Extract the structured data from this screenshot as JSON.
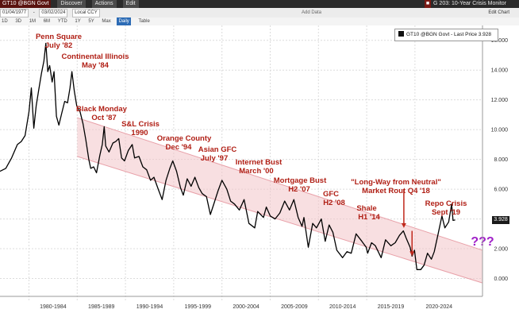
{
  "toolbar": {
    "ticker": "GT10 @BGN Govt",
    "start_date": "01/04/1977",
    "end_date": "03/02/2024",
    "discover": "Discover",
    "actions": "Actions",
    "edit": "Edit",
    "title": "G 203: 10-Year Crisis Monitor",
    "currency": "Local CCY",
    "add_data": "Add Data",
    "edit_chart": "Edit Chart"
  },
  "range_buttons": [
    "1D",
    "3D",
    "1M",
    "6M",
    "YTD",
    "1Y",
    "5Y",
    "Max",
    "Daily",
    "Table"
  ],
  "legend": {
    "label": "GT10 @BGN Govt - Last Price 3.928"
  },
  "last_price_label": "3.928",
  "chart_data": {
    "type": "line",
    "series": [
      {
        "name": "GT10 @BGN Govt - Last Price",
        "color": "#000000",
        "points": [
          [
            1977.0,
            7.2
          ],
          [
            1977.6,
            7.4
          ],
          [
            1978.2,
            8.1
          ],
          [
            1978.8,
            9.0
          ],
          [
            1979.2,
            9.2
          ],
          [
            1979.6,
            9.6
          ],
          [
            1980.0,
            11.2
          ],
          [
            1980.25,
            12.8
          ],
          [
            1980.5,
            10.1
          ],
          [
            1980.75,
            11.6
          ],
          [
            1981.0,
            12.6
          ],
          [
            1981.3,
            13.8
          ],
          [
            1981.55,
            14.6
          ],
          [
            1981.75,
            15.8
          ],
          [
            1981.95,
            13.9
          ],
          [
            1982.15,
            14.3
          ],
          [
            1982.4,
            13.2
          ],
          [
            1982.6,
            13.9
          ],
          [
            1982.85,
            10.9
          ],
          [
            1983.1,
            10.3
          ],
          [
            1983.4,
            11.1
          ],
          [
            1983.7,
            11.9
          ],
          [
            1984.0,
            11.8
          ],
          [
            1984.25,
            12.8
          ],
          [
            1984.45,
            13.9
          ],
          [
            1984.7,
            12.6
          ],
          [
            1984.95,
            11.6
          ],
          [
            1985.3,
            11.2
          ],
          [
            1985.6,
            10.4
          ],
          [
            1985.9,
            9.3
          ],
          [
            1986.2,
            8.0
          ],
          [
            1986.4,
            7.4
          ],
          [
            1986.7,
            7.5
          ],
          [
            1987.0,
            7.1
          ],
          [
            1987.35,
            8.3
          ],
          [
            1987.6,
            9.0
          ],
          [
            1987.8,
            10.2
          ],
          [
            1987.95,
            8.9
          ],
          [
            1988.3,
            8.5
          ],
          [
            1988.7,
            9.1
          ],
          [
            1989.0,
            9.2
          ],
          [
            1989.3,
            9.4
          ],
          [
            1989.6,
            8.1
          ],
          [
            1989.9,
            7.9
          ],
          [
            1990.3,
            8.6
          ],
          [
            1990.7,
            9.0
          ],
          [
            1990.95,
            8.1
          ],
          [
            1991.4,
            8.2
          ],
          [
            1991.8,
            7.5
          ],
          [
            1992.2,
            7.3
          ],
          [
            1992.6,
            6.6
          ],
          [
            1992.95,
            6.8
          ],
          [
            1993.4,
            6.0
          ],
          [
            1993.8,
            5.3
          ],
          [
            1994.2,
            6.6
          ],
          [
            1994.6,
            7.4
          ],
          [
            1994.9,
            7.9
          ],
          [
            1995.3,
            7.2
          ],
          [
            1995.7,
            6.1
          ],
          [
            1996.0,
            5.6
          ],
          [
            1996.4,
            6.7
          ],
          [
            1996.8,
            6.2
          ],
          [
            1997.2,
            6.8
          ],
          [
            1997.6,
            6.1
          ],
          [
            1997.95,
            5.7
          ],
          [
            1998.4,
            5.5
          ],
          [
            1998.8,
            4.3
          ],
          [
            1999.2,
            5.1
          ],
          [
            1999.6,
            5.9
          ],
          [
            2000.0,
            6.6
          ],
          [
            2000.5,
            6.0
          ],
          [
            2000.9,
            5.2
          ],
          [
            2001.3,
            5.0
          ],
          [
            2001.8,
            4.6
          ],
          [
            2002.3,
            5.3
          ],
          [
            2002.8,
            3.7
          ],
          [
            2003.4,
            3.4
          ],
          [
            2003.7,
            4.5
          ],
          [
            2004.3,
            4.1
          ],
          [
            2004.6,
            4.8
          ],
          [
            2005.0,
            4.2
          ],
          [
            2005.5,
            4.0
          ],
          [
            2006.0,
            4.4
          ],
          [
            2006.5,
            5.2
          ],
          [
            2007.0,
            4.6
          ],
          [
            2007.45,
            5.3
          ],
          [
            2007.9,
            4.1
          ],
          [
            2008.3,
            3.5
          ],
          [
            2008.5,
            4.1
          ],
          [
            2008.95,
            2.1
          ],
          [
            2009.4,
            3.7
          ],
          [
            2009.8,
            3.4
          ],
          [
            2010.3,
            4.0
          ],
          [
            2010.7,
            2.5
          ],
          [
            2011.1,
            3.6
          ],
          [
            2011.5,
            3.1
          ],
          [
            2011.9,
            1.9
          ],
          [
            2012.5,
            1.4
          ],
          [
            2012.95,
            1.8
          ],
          [
            2013.4,
            1.7
          ],
          [
            2013.9,
            3.0
          ],
          [
            2014.5,
            2.5
          ],
          [
            2014.95,
            2.1
          ],
          [
            2015.1,
            1.7
          ],
          [
            2015.5,
            2.4
          ],
          [
            2015.9,
            2.2
          ],
          [
            2016.5,
            1.4
          ],
          [
            2016.95,
            2.6
          ],
          [
            2017.5,
            2.2
          ],
          [
            2017.95,
            2.4
          ],
          [
            2018.4,
            2.9
          ],
          [
            2018.8,
            3.2
          ],
          [
            2019.1,
            2.7
          ],
          [
            2019.5,
            2.1
          ],
          [
            2019.7,
            1.5
          ],
          [
            2019.95,
            1.9
          ],
          [
            2020.2,
            0.6
          ],
          [
            2020.6,
            0.6
          ],
          [
            2020.95,
            0.9
          ],
          [
            2021.3,
            1.7
          ],
          [
            2021.7,
            1.3
          ],
          [
            2022.0,
            1.8
          ],
          [
            2022.4,
            3.0
          ],
          [
            2022.8,
            4.2
          ],
          [
            2023.1,
            3.4
          ],
          [
            2023.5,
            3.8
          ],
          [
            2023.8,
            5.0
          ],
          [
            2023.95,
            3.9
          ],
          [
            2024.17,
            3.928
          ]
        ]
      }
    ],
    "channel": {
      "color": "#f2c4c8",
      "upper": [
        [
          1985.0,
          10.8
        ],
        [
          2027.0,
          1.9
        ]
      ],
      "lower": [
        [
          1985.0,
          8.2
        ],
        [
          2027.0,
          -0.3
        ]
      ]
    },
    "annotations": [
      {
        "label": "Penn Square",
        "label2": "July '82"
      },
      {
        "label": "Continental Illinois",
        "label2": "May '84"
      },
      {
        "label": "Black Monday",
        "label2": "Oct '87"
      },
      {
        "label": "S&L Crisis",
        "label2": "1990"
      },
      {
        "label": "Orange County",
        "label2": "Dec '94"
      },
      {
        "label": "Asian GFC",
        "label2": "July '97"
      },
      {
        "label": "Internet Bust",
        "label2": "March '00"
      },
      {
        "label": "Mortgage Bust",
        "label2": "H2 '07"
      },
      {
        "label": "GFC",
        "label2": "H2 '08"
      },
      {
        "label": "Shale",
        "label2": "H1 '14"
      },
      {
        "label": "\"Long-Way from Neutral\"",
        "label2": "Market Rout Q4 '18"
      },
      {
        "label": "Repo Crisis",
        "label2": "Sept '19"
      }
    ],
    "question_label": "???",
    "x_tick_labels": [
      "1980-1984",
      "1985-1989",
      "1990-1994",
      "1995-1999",
      "2000-2004",
      "2005-2009",
      "2010-2014",
      "2015-2019",
      "2020-2024"
    ],
    "y_ticks": [
      0,
      2,
      4,
      6,
      8,
      10,
      12,
      14,
      16
    ],
    "y_tick_labels": [
      "0.000",
      "2.000",
      "4.000",
      "6.000",
      "8.000",
      "10.000",
      "12.000",
      "14.000",
      "16.000"
    ],
    "xlim": [
      1977.0,
      2027.0
    ],
    "ylim": [
      -1.2,
      17.0
    ],
    "grid": true,
    "legend_position": "top-right"
  }
}
